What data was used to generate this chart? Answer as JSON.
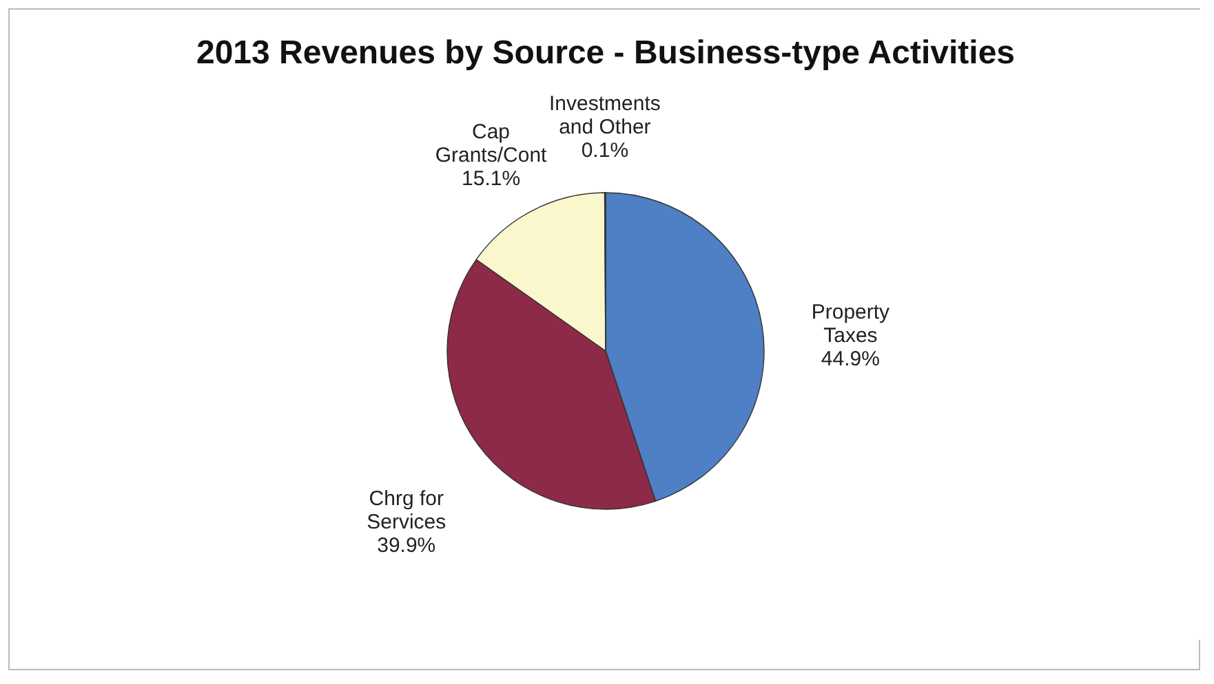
{
  "chart_data": {
    "type": "pie",
    "title": "2013 Revenues by Source - Business-type Activities",
    "categories": [
      "Property Taxes",
      "Chrg for Services",
      "Cap Grants/Cont",
      "Investments and Other"
    ],
    "values": [
      44.9,
      39.9,
      15.1,
      0.1
    ],
    "value_labels": [
      "44.9%",
      "39.9%",
      "15.1%",
      "0.1%"
    ],
    "colors": [
      "#4f7fc4",
      "#8c2a47",
      "#fbf7cd",
      "#9bbb59"
    ]
  }
}
